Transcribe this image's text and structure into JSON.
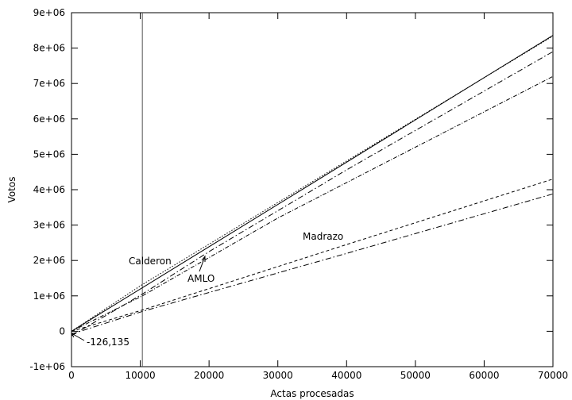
{
  "chart_data": {
    "type": "line",
    "xlabel": "Actas procesadas",
    "ylabel": "Votos",
    "xlim": [
      0,
      70000
    ],
    "ylim": [
      -1000000,
      9000000
    ],
    "xticks": [
      0,
      10000,
      20000,
      30000,
      40000,
      50000,
      60000,
      70000
    ],
    "xtick_labels": [
      "0",
      "10000",
      "20000",
      "30000",
      "40000",
      "50000",
      "60000",
      "70000"
    ],
    "yticks": [
      -1000000,
      0,
      1000000,
      2000000,
      3000000,
      4000000,
      5000000,
      6000000,
      7000000,
      8000000,
      9000000
    ],
    "ytick_labels": [
      "-1e+06",
      "0",
      "1e+06",
      "2e+06",
      "3e+06",
      "4e+06",
      "5e+06",
      "6e+06",
      "7e+06",
      "8e+06",
      "9e+06"
    ],
    "grid": false,
    "reference_line_x": 10300,
    "series": [
      {
        "name": "Calderon",
        "style": "solid",
        "x": [
          0,
          10300,
          70000
        ],
        "y": [
          0,
          1230000,
          8360000
        ]
      },
      {
        "style": "dotted",
        "x": [
          0,
          10300,
          70000
        ],
        "y": [
          0,
          1320000,
          8340000
        ]
      },
      {
        "name": "AMLO",
        "style": "dashdot",
        "x": [
          0,
          10300,
          20000,
          40000,
          70000
        ],
        "y": [
          -126135,
          1050000,
          2250000,
          4560000,
          7900000
        ]
      },
      {
        "style": "dashdot-fine",
        "x": [
          0,
          10300,
          30000,
          50000,
          70000
        ],
        "y": [
          0,
          1000000,
          3200000,
          5200000,
          7200000
        ]
      },
      {
        "name": "Madrazo",
        "style": "dashed",
        "x": [
          0,
          10300,
          40000,
          70000
        ],
        "y": [
          0,
          600000,
          2450000,
          4300000
        ]
      },
      {
        "style": "dashdot",
        "x": [
          0,
          10300,
          40000,
          70000
        ],
        "y": [
          -80000,
          560000,
          2200000,
          3880000
        ]
      }
    ],
    "annotations": [
      {
        "text": "Calderon"
      },
      {
        "text": "AMLO"
      },
      {
        "text": "Madrazo"
      },
      {
        "text": "-126,135"
      }
    ]
  }
}
